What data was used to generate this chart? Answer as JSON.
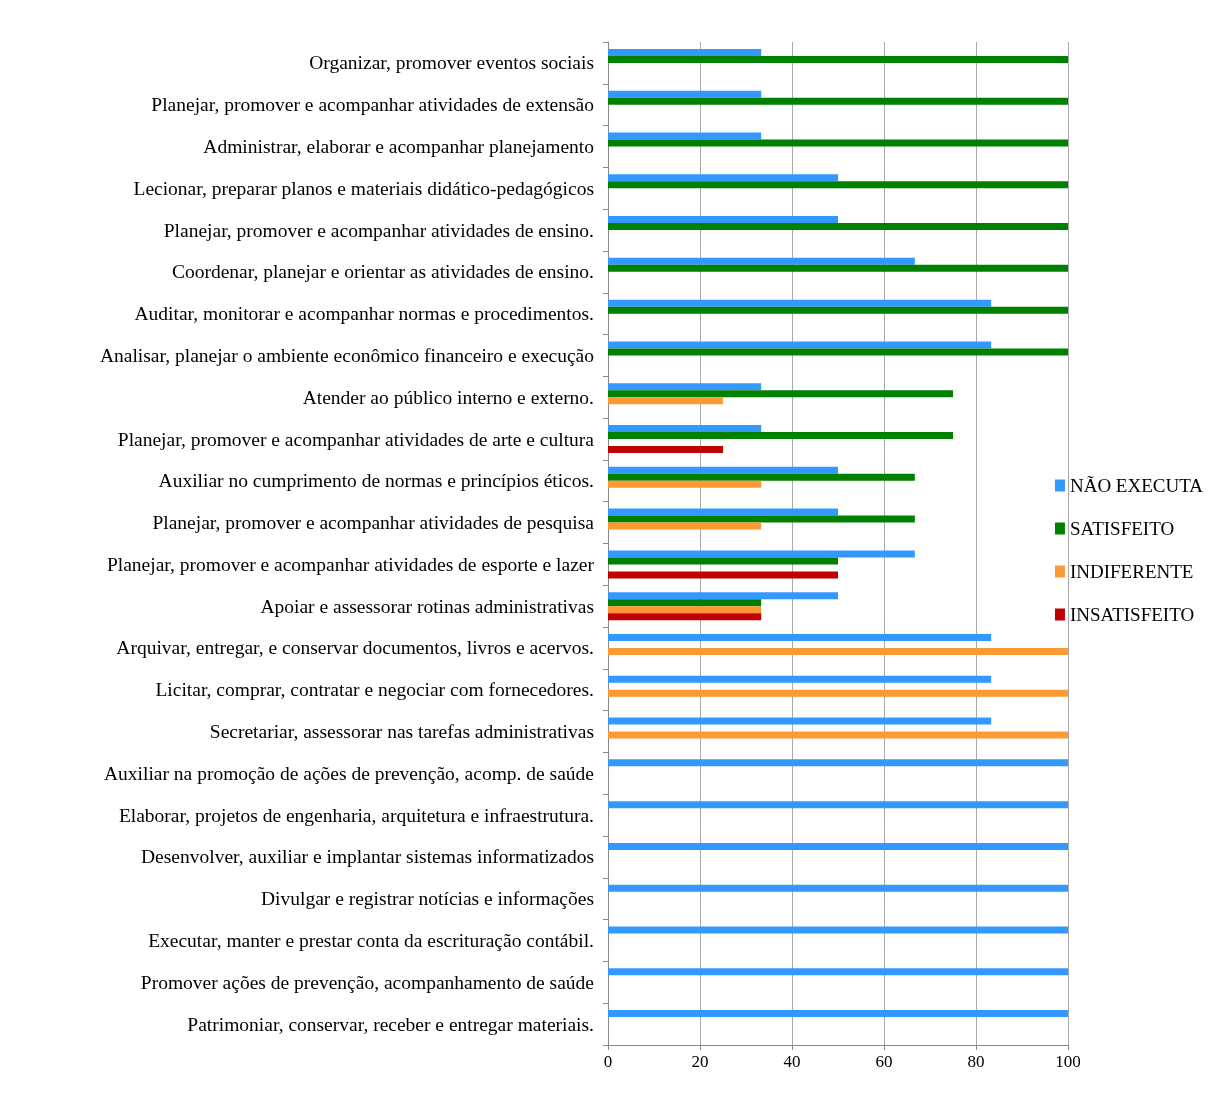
{
  "chart_data": {
    "type": "bar",
    "orientation": "horizontal",
    "categories": [
      "Organizar, promover eventos sociais",
      "Planejar, promover e acompanhar atividades de extensão",
      "Administrar, elaborar e acompanhar planejamento",
      "Lecionar, preparar planos e materiais didático-pedagógicos",
      "Planejar, promover e acompanhar atividades de ensino.",
      "Coordenar, planejar e orientar as atividades de ensino.",
      "Auditar, monitorar e acompanhar normas e procedimentos.",
      "Analisar, planejar o ambiente econômico financeiro e execução",
      "Atender ao público interno e externo.",
      "Planejar, promover e acompanhar atividades de arte e cultura",
      "Auxiliar no cumprimento de normas e princípios éticos.",
      "Planejar, promover e acompanhar atividades de pesquisa",
      "Planejar, promover e acompanhar atividades de esporte e lazer",
      "Apoiar e assessorar rotinas administrativas",
      "Arquivar, entregar, e conservar documentos, livros e acervos.",
      "Licitar, comprar, contratar e negociar com fornecedores.",
      "Secretariar, assessorar nas tarefas administrativas",
      "Auxiliar na promoção de ações de prevenção, acomp. de saúde",
      "Elaborar, projetos de engenharia, arquitetura e infraestrutura.",
      "Desenvolver, auxiliar e implantar sistemas informatizados",
      "Divulgar e registrar notícias e informações",
      "Executar, manter e prestar conta da escrituração contábil.",
      "Promover ações de prevenção, acompanhamento de saúde",
      "Patrimoniar, conservar, receber e entregar materiais."
    ],
    "series": [
      {
        "name": "NÃO EXECUTA",
        "color": "#3399ff",
        "values": [
          33.3,
          33.3,
          33.3,
          50,
          50,
          66.7,
          83.3,
          83.3,
          33.3,
          33.3,
          50,
          50,
          66.7,
          50,
          83.3,
          83.3,
          83.3,
          100,
          100,
          100,
          100,
          100,
          100,
          100
        ]
      },
      {
        "name": "SATISFEITO",
        "color": "#008000",
        "values": [
          100,
          100,
          100,
          100,
          100,
          100,
          100,
          100,
          75,
          75,
          66.7,
          66.7,
          50,
          33.3,
          null,
          null,
          null,
          null,
          null,
          null,
          null,
          null,
          null,
          null
        ]
      },
      {
        "name": "INDIFERENTE",
        "color": "#ff9933",
        "values": [
          null,
          null,
          null,
          null,
          null,
          null,
          null,
          null,
          25,
          null,
          33.3,
          33.3,
          null,
          33.3,
          100,
          100,
          100,
          null,
          null,
          null,
          null,
          null,
          null,
          null
        ]
      },
      {
        "name": "INSATISFEITO",
        "color": "#c00000",
        "values": [
          null,
          null,
          null,
          null,
          null,
          null,
          null,
          null,
          null,
          25,
          null,
          null,
          50,
          33.3,
          null,
          null,
          null,
          null,
          null,
          null,
          null,
          null,
          null,
          null
        ]
      }
    ],
    "xlim": [
      0,
      100
    ],
    "xticks": [
      0,
      20,
      40,
      60,
      80,
      100
    ],
    "grid": "x",
    "legend": "right"
  }
}
